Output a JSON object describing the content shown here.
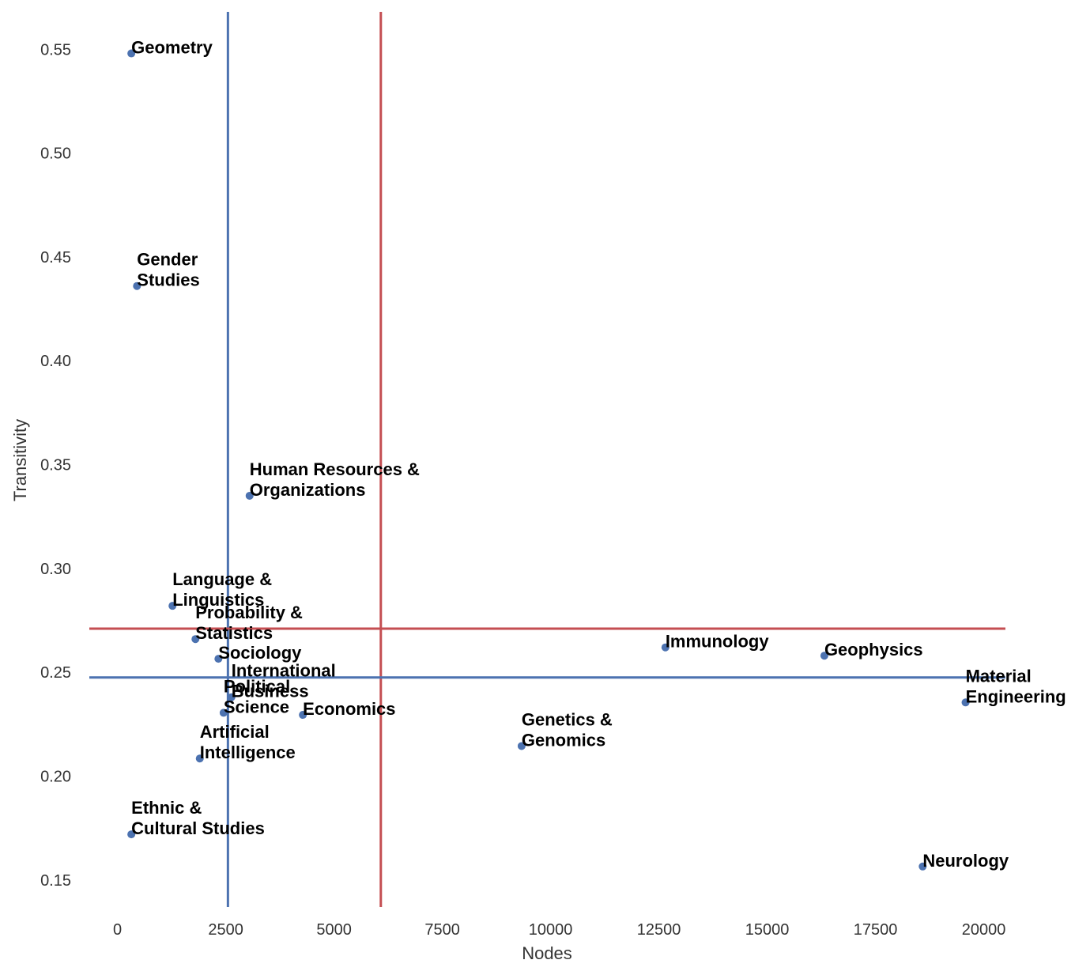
{
  "chart_data": {
    "type": "scatter",
    "title": "",
    "xlabel": "Nodes",
    "ylabel": "Transitivity",
    "xlim": [
      -650,
      20500
    ],
    "ylim": [
      0.137,
      0.568
    ],
    "xticks": [
      0,
      2500,
      5000,
      7500,
      10000,
      12500,
      15000,
      17500,
      20000
    ],
    "xtick_labels": [
      "0",
      "2500",
      "5000",
      "7500",
      "10000",
      "12500",
      "15000",
      "17500",
      "20000"
    ],
    "yticks": [
      0.15,
      0.2,
      0.25,
      0.3,
      0.35,
      0.4,
      0.45,
      0.5,
      0.55
    ],
    "ytick_labels": [
      "0.15",
      "0.20",
      "0.25",
      "0.30",
      "0.35",
      "0.40",
      "0.45",
      "0.50",
      "0.55"
    ],
    "grid": false,
    "point_color": "#4c72b0",
    "reference_lines": [
      {
        "orientation": "vertical",
        "value": 2550,
        "color": "#4c72b0"
      },
      {
        "orientation": "vertical",
        "value": 6080,
        "color": "#c44e52"
      },
      {
        "orientation": "horizontal",
        "value": 0.271,
        "color": "#c44e52"
      },
      {
        "orientation": "horizontal",
        "value": 0.2475,
        "color": "#4c72b0"
      }
    ],
    "points": [
      {
        "label": [
          "Geometry"
        ],
        "x": 320,
        "y": 0.548
      },
      {
        "label": [
          "Gender",
          "Studies"
        ],
        "x": 450,
        "y": 0.436
      },
      {
        "label": [
          "Human Resources &",
          "Organizations"
        ],
        "x": 3050,
        "y": 0.335
      },
      {
        "label": [
          "Language &",
          "Linguistics"
        ],
        "x": 1270,
        "y": 0.282
      },
      {
        "label": [
          "Probability &",
          "Statistics"
        ],
        "x": 1800,
        "y": 0.266
      },
      {
        "label": [
          "Sociology"
        ],
        "x": 2330,
        "y": 0.2565
      },
      {
        "label": [
          "International",
          "Business"
        ],
        "x": 2630,
        "y": 0.238
      },
      {
        "label": [
          "Political",
          "Science"
        ],
        "x": 2450,
        "y": 0.2305
      },
      {
        "label": [
          "Economics"
        ],
        "x": 4280,
        "y": 0.2295
      },
      {
        "label": [
          "Artificial",
          "Intelligence"
        ],
        "x": 1900,
        "y": 0.2085
      },
      {
        "label": [
          "Ethnic &",
          "Cultural Studies"
        ],
        "x": 320,
        "y": 0.172
      },
      {
        "label": [
          "Genetics &",
          "Genomics"
        ],
        "x": 9330,
        "y": 0.2145
      },
      {
        "label": [
          "Immunology"
        ],
        "x": 12650,
        "y": 0.262
      },
      {
        "label": [
          "Geophysics"
        ],
        "x": 16320,
        "y": 0.258
      },
      {
        "label": [
          "Material",
          "Engineering"
        ],
        "x": 19580,
        "y": 0.2355
      },
      {
        "label": [
          "Neurology"
        ],
        "x": 18590,
        "y": 0.1565
      }
    ]
  }
}
